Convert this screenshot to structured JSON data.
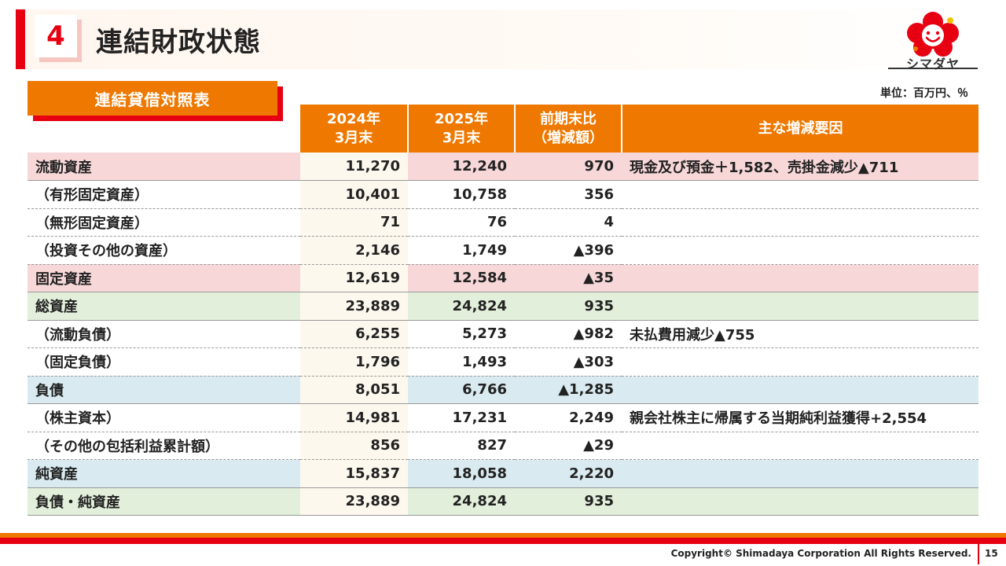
{
  "header": {
    "number": "4",
    "title": "連結財政状態"
  },
  "logo": {
    "text": "シマダヤ",
    "colors": {
      "red": "#e60012",
      "orange": "#ee7800",
      "yellow": "#f5c400"
    }
  },
  "section": {
    "label": "連結貸借対照表",
    "unit": "単位：百万円、％"
  },
  "table": {
    "headers": [
      {
        "line1": "2024年",
        "line2": "3月末"
      },
      {
        "line1": "2025年",
        "line2": "3月末"
      },
      {
        "line1": "前期末比",
        "line2": "（増減額）"
      },
      {
        "line1": "主な増減要因",
        "line2": ""
      }
    ],
    "rows": [
      {
        "label": "流動資産",
        "v2024": "11,270",
        "v2025": "12,240",
        "change": "970",
        "note": "現金及び預金＋1,582、売掛金減少▲711",
        "style": "pink"
      },
      {
        "label": "（有形固定資産）",
        "v2024": "10,401",
        "v2025": "10,758",
        "change": "356",
        "note": "",
        "style": "plain"
      },
      {
        "label": "（無形固定資産）",
        "v2024": "71",
        "v2025": "76",
        "change": "4",
        "note": "",
        "style": "plain"
      },
      {
        "label": "（投資その他の資産）",
        "v2024": "2,146",
        "v2025": "1,749",
        "change": "▲396",
        "note": "",
        "style": "plain"
      },
      {
        "label": "固定資産",
        "v2024": "12,619",
        "v2025": "12,584",
        "change": "▲35",
        "note": "",
        "style": "pink"
      },
      {
        "label": "総資産",
        "v2024": "23,889",
        "v2025": "24,824",
        "change": "935",
        "note": "",
        "style": "green"
      },
      {
        "label": "（流動負債）",
        "v2024": "6,255",
        "v2025": "5,273",
        "change": "▲982",
        "note": "未払費用減少▲755",
        "style": "plain"
      },
      {
        "label": "（固定負債）",
        "v2024": "1,796",
        "v2025": "1,493",
        "change": "▲303",
        "note": "",
        "style": "plain"
      },
      {
        "label": "負債",
        "v2024": "8,051",
        "v2025": "6,766",
        "change": "▲1,285",
        "note": "",
        "style": "blue"
      },
      {
        "label": "（株主資本）",
        "v2024": "14,981",
        "v2025": "17,231",
        "change": "2,249",
        "note": "親会社株主に帰属する当期純利益獲得+2,554",
        "style": "plain"
      },
      {
        "label": "（その他の包括利益累計額）",
        "v2024": "856",
        "v2025": "827",
        "change": "▲29",
        "note": "",
        "style": "plain"
      },
      {
        "label": "純資産",
        "v2024": "15,837",
        "v2025": "18,058",
        "change": "2,220",
        "note": "",
        "style": "blue"
      },
      {
        "label": "負債・純資産",
        "v2024": "23,889",
        "v2025": "24,824",
        "change": "935",
        "note": "",
        "style": "green"
      }
    ]
  },
  "footer": {
    "copyright": "Copyright© Shimadaya Corporation All Rights Reserved.",
    "page": "15"
  },
  "colors": {
    "accent_orange": "#ee7800",
    "accent_red": "#e60012",
    "row_pink": "#f8d7d8",
    "row_green": "#e2efdb",
    "row_blue": "#d9ebf1"
  }
}
